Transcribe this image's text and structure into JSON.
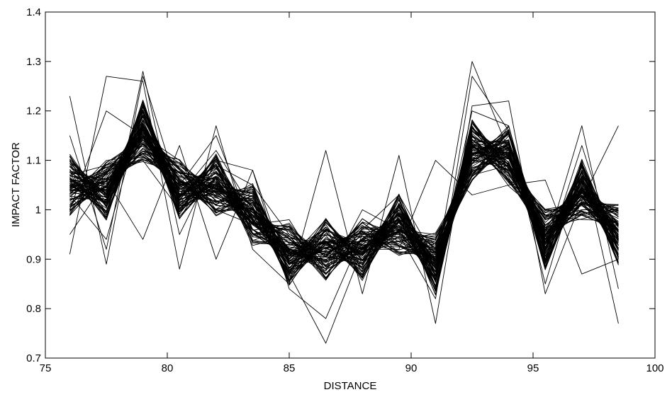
{
  "chart_data": {
    "type": "line",
    "xlabel": "DISTANCE",
    "ylabel": "IMPACT FACTOR",
    "xlim": [
      75,
      100
    ],
    "ylim": [
      0.7,
      1.4
    ],
    "xticks": [
      75,
      80,
      85,
      90,
      95,
      100
    ],
    "yticks": [
      0.7,
      0.8,
      0.9,
      1,
      1.1,
      1.2,
      1.3,
      1.4
    ],
    "xtick_labels": [
      "75",
      "80",
      "85",
      "90",
      "95",
      "100"
    ],
    "ytick_labels": [
      "0.7",
      "0.8",
      "0.9",
      "1",
      "1.1",
      "1.2",
      "1.3",
      "1.4"
    ],
    "grid": false,
    "line_color": "#000000",
    "x": [
      76,
      77.5,
      79,
      80.5,
      82,
      83.5,
      85,
      86.5,
      88,
      89.5,
      91,
      92.5,
      94,
      95.5,
      97,
      98.5
    ],
    "series_count": 100,
    "series": [
      {
        "values": [
          1.23,
          0.89,
          1.27,
          1.03,
          1.12,
          1.0,
          0.92,
          0.96,
          0.93,
          0.99,
          0.88,
          1.3,
          1.12,
          0.92,
          1.17,
          0.84
        ]
      },
      {
        "values": [
          0.91,
          1.27,
          1.26,
          0.88,
          1.17,
          0.92,
          0.85,
          1.12,
          0.83,
          1.11,
          0.77,
          1.21,
          1.22,
          0.83,
          1.02,
          1.17
        ]
      },
      {
        "values": [
          1.15,
          0.92,
          1.28,
          0.95,
          1.1,
          1.08,
          0.84,
          0.78,
          0.95,
          0.95,
          0.82,
          1.27,
          1.16,
          0.85,
          1.1,
          0.77
        ]
      },
      {
        "values": [
          0.95,
          1.06,
          0.94,
          1.13,
          0.9,
          1.08,
          0.87,
          0.73,
          0.92,
          0.92,
          1.1,
          1.03,
          1.05,
          1.06,
          0.87,
          0.9
        ]
      },
      {
        "values": [
          1.03,
          0.94,
          1.2,
          1.05,
          1.15,
          0.96,
          0.9,
          0.98,
          0.88,
          1.0,
          0.86,
          1.2,
          1.17,
          0.9,
          1.13,
          0.9
        ]
      },
      {
        "values": [
          1.1,
          0.98,
          1.22,
          1.0,
          1.09,
          1.05,
          0.95,
          0.92,
          0.96,
          1.03,
          0.9,
          1.13,
          1.11,
          0.95,
          1.05,
          0.96
        ]
      },
      {
        "values": [
          1.0,
          1.2,
          1.15,
          1.1,
          1.0,
          0.97,
          0.98,
          0.86,
          1.0,
          0.96,
          0.95,
          1.07,
          1.09,
          0.98,
          1.0,
          1.0
        ]
      },
      {
        "values": [
          1.07,
          1.09,
          1.1,
          1.0,
          1.04,
          0.99,
          0.91,
          0.9,
          0.92,
          0.98,
          0.93,
          1.1,
          1.13,
          0.94,
          1.03,
          0.97
        ]
      }
    ],
    "variation": {
      "method": "sinusoidal-offset",
      "amplitude": 0.045,
      "base_values": [
        1.05,
        1.04,
        1.16,
        1.04,
        1.05,
        0.99,
        0.91,
        0.92,
        0.92,
        0.97,
        0.89,
        1.12,
        1.11,
        0.94,
        1.04,
        0.95
      ]
    }
  }
}
